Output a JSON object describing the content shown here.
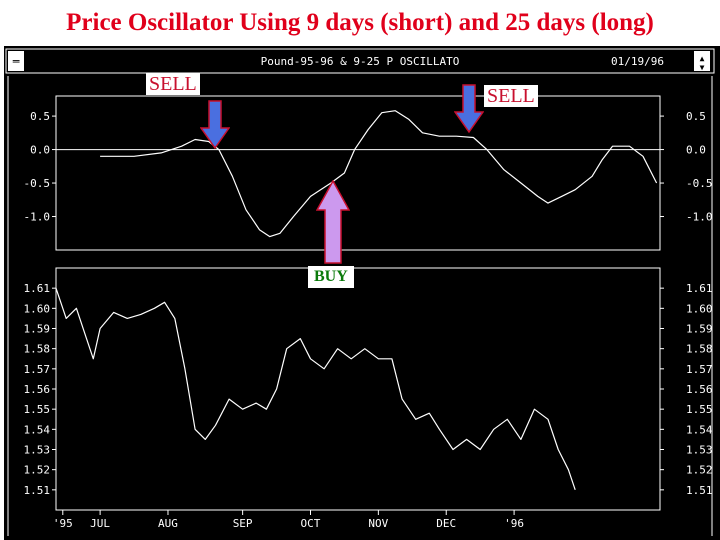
{
  "slide": {
    "title": "Price Oscillator Using 9 days (short) and 25 days (long)"
  },
  "window": {
    "title": "Pound-95-96 & 9-25 P OSCILLATO",
    "date": "01/19/96",
    "menu_glyph": "═",
    "scroll_up_glyph": "▲",
    "scroll_down_glyph": "▼"
  },
  "colors": {
    "title": "#e0001b",
    "sell_text": "#c8102e",
    "buy_text": "#0a7a0a",
    "sell_arrow": "#4a6fe0",
    "buy_arrow": "#cc99ee",
    "arrow_outline": "#c8102e",
    "screen_bg": "#000000",
    "line": "#ffffff"
  },
  "annotations": {
    "sell_1": {
      "label": "SELL",
      "arrow": "down-arrow"
    },
    "sell_2": {
      "label": "SELL",
      "arrow": "down-arrow"
    },
    "buy": {
      "label": "BUY",
      "arrow": "up-arrow"
    }
  },
  "chart_data": [
    {
      "type": "line",
      "title": "",
      "ylim": [
        -1.5,
        0.8
      ],
      "y_ticks": [
        "0.5",
        "0.0",
        "-0.5",
        "-1.0"
      ],
      "zero_line": true,
      "series": [
        {
          "points": [
            [
              6.5,
              -0.1
            ],
            [
              7.0,
              -0.1
            ],
            [
              7.4,
              -0.05
            ],
            [
              7.7,
              0.05
            ],
            [
              7.9,
              0.15
            ],
            [
              8.1,
              0.12
            ],
            [
              8.25,
              0.0
            ],
            [
              8.45,
              -0.4
            ],
            [
              8.65,
              -0.9
            ],
            [
              8.85,
              -1.2
            ],
            [
              9.0,
              -1.3
            ],
            [
              9.15,
              -1.25
            ],
            [
              9.35,
              -1.0
            ],
            [
              9.6,
              -0.7
            ],
            [
              9.9,
              -0.5
            ],
            [
              10.1,
              -0.35
            ],
            [
              10.25,
              0.0
            ],
            [
              10.45,
              0.3
            ],
            [
              10.65,
              0.55
            ],
            [
              10.85,
              0.58
            ],
            [
              11.05,
              0.45
            ],
            [
              11.25,
              0.25
            ],
            [
              11.5,
              0.2
            ],
            [
              11.75,
              0.2
            ],
            [
              12.0,
              0.18
            ],
            [
              12.2,
              0.0
            ],
            [
              12.45,
              -0.3
            ],
            [
              12.7,
              -0.5
            ],
            [
              12.95,
              -0.7
            ],
            [
              13.1,
              -0.8
            ],
            [
              13.3,
              -0.7
            ],
            [
              13.5,
              -0.6
            ],
            [
              13.75,
              -0.4
            ],
            [
              13.9,
              -0.15
            ],
            [
              14.05,
              0.05
            ],
            [
              14.3,
              0.05
            ],
            [
              14.5,
              -0.1
            ],
            [
              14.7,
              -0.5
            ]
          ]
        }
      ]
    },
    {
      "type": "line",
      "title": "",
      "ylim": [
        1.5,
        1.62
      ],
      "y_ticks": [
        "1.61",
        "1.60",
        "1.59",
        "1.58",
        "1.57",
        "1.56",
        "1.55",
        "1.54",
        "1.53",
        "1.52",
        "1.51"
      ],
      "x_ticks": [
        {
          "label": "'95",
          "pos": 5.95
        },
        {
          "label": "JUL",
          "pos": 6.5
        },
        {
          "label": "AUG",
          "pos": 7.5
        },
        {
          "label": "SEP",
          "pos": 8.6
        },
        {
          "label": "OCT",
          "pos": 9.6
        },
        {
          "label": "NOV",
          "pos": 10.6
        },
        {
          "label": "DEC",
          "pos": 11.6
        },
        {
          "label": "'96",
          "pos": 12.6
        }
      ],
      "series": [
        {
          "points": [
            [
              5.85,
              1.61
            ],
            [
              6.0,
              1.595
            ],
            [
              6.15,
              1.6
            ],
            [
              6.3,
              1.585
            ],
            [
              6.4,
              1.575
            ],
            [
              6.5,
              1.59
            ],
            [
              6.7,
              1.598
            ],
            [
              6.9,
              1.595
            ],
            [
              7.1,
              1.597
            ],
            [
              7.3,
              1.6
            ],
            [
              7.45,
              1.603
            ],
            [
              7.6,
              1.595
            ],
            [
              7.75,
              1.57
            ],
            [
              7.9,
              1.54
            ],
            [
              8.05,
              1.535
            ],
            [
              8.2,
              1.542
            ],
            [
              8.4,
              1.555
            ],
            [
              8.6,
              1.55
            ],
            [
              8.8,
              1.553
            ],
            [
              8.95,
              1.55
            ],
            [
              9.1,
              1.56
            ],
            [
              9.25,
              1.58
            ],
            [
              9.45,
              1.585
            ],
            [
              9.6,
              1.575
            ],
            [
              9.8,
              1.57
            ],
            [
              10.0,
              1.58
            ],
            [
              10.2,
              1.575
            ],
            [
              10.4,
              1.58
            ],
            [
              10.6,
              1.575
            ],
            [
              10.8,
              1.575
            ],
            [
              10.95,
              1.555
            ],
            [
              11.15,
              1.545
            ],
            [
              11.35,
              1.548
            ],
            [
              11.5,
              1.54
            ],
            [
              11.7,
              1.53
            ],
            [
              11.9,
              1.535
            ],
            [
              12.1,
              1.53
            ],
            [
              12.3,
              1.54
            ],
            [
              12.5,
              1.545
            ],
            [
              12.7,
              1.535
            ],
            [
              12.9,
              1.55
            ],
            [
              13.1,
              1.545
            ],
            [
              13.25,
              1.53
            ],
            [
              13.4,
              1.52
            ],
            [
              13.5,
              1.51
            ]
          ]
        }
      ]
    }
  ]
}
